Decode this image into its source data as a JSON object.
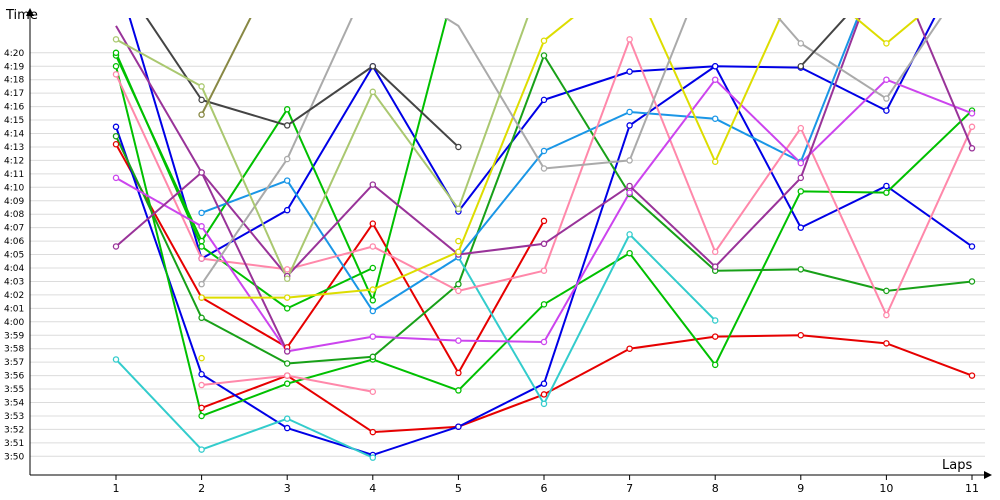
{
  "chart_data": {
    "type": "line",
    "ylabel": "Time",
    "xlabel": "Laps",
    "x": [
      1,
      2,
      3,
      4,
      5,
      6,
      7,
      8,
      9,
      10,
      11
    ],
    "x_ticks": [
      "1",
      "2",
      "3",
      "4",
      "5",
      "6",
      "7",
      "8",
      "9",
      "10",
      "11"
    ],
    "y_unit": "seconds",
    "y_ticks": [
      "3:50",
      "3:51",
      "3:52",
      "3:53",
      "3:54",
      "3:55",
      "3:56",
      "3:57",
      "3:58",
      "3:59",
      "4:00",
      "4:01",
      "4:02",
      "4:03",
      "4:04",
      "4:05",
      "4:06",
      "4:07",
      "4:08",
      "4:09",
      "4:10",
      "4:11",
      "4:12",
      "4:13",
      "4:14",
      "4:15",
      "4:16",
      "4:17",
      "4:18",
      "4:19",
      "4:20"
    ],
    "ylim": [
      229.2,
      261.8
    ],
    "grid": true,
    "series": [
      {
        "color": "#e60000",
        "values": [
          null,
          233.6,
          236.0,
          231.8,
          232.2,
          234.6,
          238.0,
          238.9,
          239.0,
          238.4,
          236.0
        ]
      },
      {
        "color": "#e60000",
        "values": [
          253.2,
          241.8,
          238.1,
          247.3,
          236.2,
          247.5,
          null,
          null,
          null,
          null,
          null
        ]
      },
      {
        "color": "#0000e6",
        "values": [
          254.5,
          236.1,
          232.1,
          230.1,
          232.2,
          235.4,
          254.6,
          259.0,
          247.0,
          250.1,
          245.6
        ]
      },
      {
        "color": "#0000e6",
        "values": [
          266.0,
          244.7,
          248.3,
          259.0,
          248.2,
          256.5,
          258.6,
          259.0,
          258.9,
          255.7,
          268.0
        ]
      },
      {
        "color": "#00c000",
        "values": [
          259.8,
          246.0,
          255.8,
          241.6,
          266.0,
          null,
          null,
          null,
          null,
          null,
          null
        ]
      },
      {
        "color": "#00c000",
        "values": [
          259.0,
          233.0,
          235.4,
          237.2,
          234.9,
          241.3,
          245.1,
          236.8,
          249.7,
          249.6,
          255.7
        ]
      },
      {
        "color": "#18a018",
        "values": [
          253.8,
          240.3,
          236.9,
          237.4,
          242.8,
          259.8,
          249.5,
          243.8,
          243.9,
          242.3,
          243.0
        ]
      },
      {
        "color": "#00c000",
        "values": [
          260.0,
          245.6,
          241.0,
          244.0,
          null,
          null,
          null,
          null,
          null,
          null,
          null
        ]
      },
      {
        "color": "#33cccc",
        "values": [
          237.2,
          230.5,
          232.8,
          229.9,
          null,
          null,
          null,
          null,
          null,
          null,
          null
        ]
      },
      {
        "color": "#33cccc",
        "values": [
          null,
          null,
          null,
          null,
          244.8,
          233.9,
          246.5,
          240.1,
          null,
          null,
          null
        ]
      },
      {
        "color": "#1a96e6",
        "values": [
          null,
          248.1,
          250.5,
          240.8,
          244.8,
          252.7,
          255.6,
          255.1,
          251.9,
          268.0,
          null
        ]
      },
      {
        "color": "#ff88aa",
        "values": [
          258.4,
          244.7,
          243.9,
          245.6,
          242.3,
          243.8,
          261.0,
          245.2,
          254.4,
          240.5,
          254.5
        ]
      },
      {
        "color": "#ff88aa",
        "values": [
          null,
          235.3,
          236.0,
          234.8,
          null,
          null,
          null,
          null,
          null,
          null,
          null
        ]
      },
      {
        "color": "#cc44ee",
        "values": [
          250.7,
          247.1,
          237.8,
          238.9,
          238.6,
          238.5,
          249.6,
          258.0,
          251.8,
          258.0,
          255.5
        ]
      },
      {
        "color": "#993399",
        "values": [
          245.6,
          251.1,
          243.4,
          250.2,
          245.0,
          245.8,
          250.1,
          244.1,
          250.7,
          268.0,
          252.9
        ]
      },
      {
        "color": "#993399",
        "values": [
          262.0,
          251.1,
          237.8,
          null,
          null,
          null,
          null,
          null,
          null,
          null,
          null
        ]
      },
      {
        "color": "#dddd00",
        "values": [
          null,
          241.8,
          241.8,
          242.4,
          245.2,
          260.9,
          266.0,
          251.9,
          266.0,
          260.7,
          266.0
        ]
      },
      {
        "color": "#dddd00",
        "values": [
          null,
          237.3,
          null,
          null,
          246.0,
          null,
          null,
          null,
          null,
          null,
          null
        ]
      },
      {
        "color": "#aaaaaa",
        "values": [
          null,
          242.8,
          252.1,
          266.0,
          262.0,
          251.4,
          252.0,
          268.0,
          260.7,
          256.6,
          266.0
        ]
      },
      {
        "color": "#444444",
        "values": [
          266.0,
          256.5,
          254.6,
          259.0,
          253.0,
          null,
          null,
          null,
          null,
          null,
          null
        ]
      },
      {
        "color": "#444444",
        "values": [
          null,
          null,
          null,
          null,
          null,
          null,
          null,
          null,
          259.0,
          266.0,
          null
        ]
      },
      {
        "color": "#aac870",
        "values": [
          261.0,
          257.5,
          243.2,
          257.1,
          248.4,
          266.0,
          null,
          null,
          null,
          null,
          null
        ]
      },
      {
        "color": "#888844",
        "values": [
          null,
          255.4,
          268.0,
          null,
          null,
          null,
          null,
          null,
          null,
          null,
          null
        ]
      }
    ]
  }
}
